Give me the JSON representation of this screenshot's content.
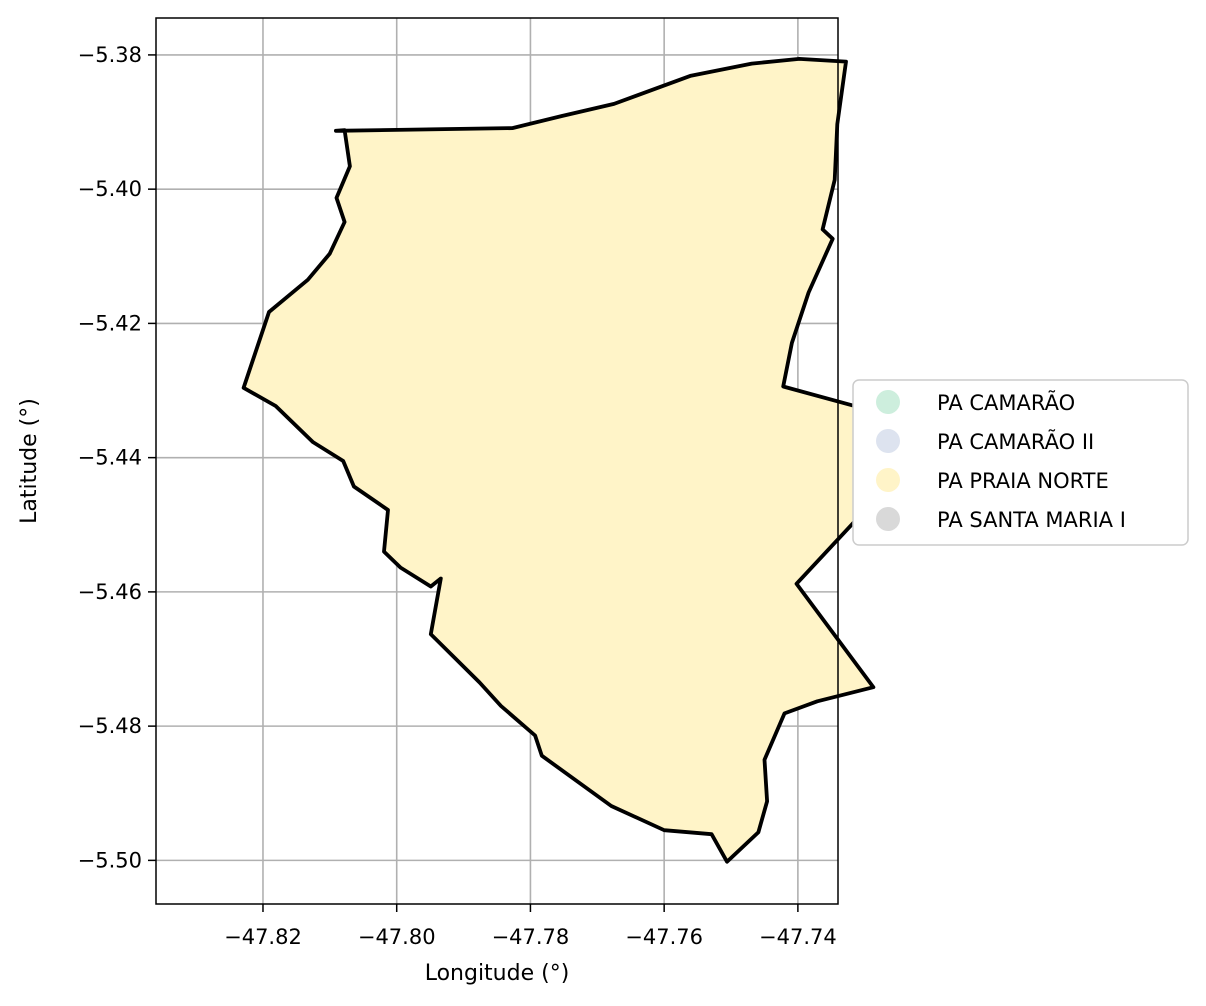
{
  "chart_data": {
    "type": "map",
    "xlabel": "Longitude (°)",
    "ylabel": "Latitude (°)",
    "xlim": [
      -47.836,
      -47.734
    ],
    "ylim": [
      -5.5065,
      -5.3745
    ],
    "x_ticks": [
      -47.82,
      -47.8,
      -47.78,
      -47.76,
      -47.74
    ],
    "y_ticks": [
      -5.38,
      -5.4,
      -5.42,
      -5.44,
      -5.46,
      -5.48,
      -5.5
    ],
    "x_tick_labels": [
      "−47.82",
      "−47.80",
      "−47.78",
      "−47.76",
      "−47.74"
    ],
    "y_tick_labels": [
      "−5.38",
      "−5.40",
      "−5.42",
      "−5.44",
      "−5.46",
      "−5.48",
      "−5.50"
    ],
    "grid": true,
    "legend_position": "center-right-outside",
    "legend": [
      {
        "name": "PA CAMARÃO",
        "color": "#cdeedd"
      },
      {
        "name": "PA CAMARÃO II",
        "color": "#dde3ef"
      },
      {
        "name": "PA PRAIA NORTE",
        "color": "#fff4c8"
      },
      {
        "name": "PA SANTA MARIA I",
        "color": "#d9d9d9"
      }
    ],
    "fill_color": "#fff4c8",
    "outline_color": "#000000",
    "outline": [
      [
        -47.7827,
        -5.3909
      ],
      [
        -47.7753,
        -5.3891
      ],
      [
        -47.7675,
        -5.3873
      ],
      [
        -47.756,
        -5.3831
      ],
      [
        -47.7469,
        -5.3813
      ],
      [
        -47.7398,
        -5.3806
      ],
      [
        -47.7328,
        -5.381
      ],
      [
        -47.7341,
        -5.3903
      ],
      [
        -47.7345,
        -5.3986
      ],
      [
        -47.7363,
        -5.406
      ],
      [
        -47.7348,
        -5.4074
      ],
      [
        -47.7384,
        -5.4154
      ],
      [
        -47.7409,
        -5.4229
      ],
      [
        -47.7422,
        -5.4294
      ],
      [
        -47.7312,
        -5.4324
      ],
      [
        -47.7149,
        -5.4347
      ],
      [
        -47.7119,
        -5.4318
      ],
      [
        -47.7089,
        -5.4393
      ],
      [
        -47.6982,
        -5.442
      ],
      [
        -47.6968,
        -5.4505
      ],
      [
        -47.7135,
        -5.4457
      ],
      [
        -47.7183,
        -5.4436
      ],
      [
        -47.7223,
        -5.4392
      ],
      [
        -47.7317,
        -5.4497
      ],
      [
        -47.7402,
        -5.4588
      ],
      [
        -47.7287,
        -5.4742
      ],
      [
        -47.7371,
        -5.4763
      ],
      [
        -47.742,
        -5.4781
      ],
      [
        -47.745,
        -5.485
      ],
      [
        -47.7446,
        -5.4912
      ],
      [
        -47.7459,
        -5.4958
      ],
      [
        -47.7506,
        -5.5002
      ],
      [
        -47.7529,
        -5.4961
      ],
      [
        -47.76,
        -5.4955
      ],
      [
        -47.7679,
        -5.4919
      ],
      [
        -47.7783,
        -5.4844
      ],
      [
        -47.7793,
        -5.4814
      ],
      [
        -47.7844,
        -5.477
      ],
      [
        -47.7876,
        -5.4735
      ],
      [
        -47.7949,
        -5.4663
      ],
      [
        -47.7934,
        -5.458
      ],
      [
        -47.7949,
        -5.4592
      ],
      [
        -47.7994,
        -5.4564
      ],
      [
        -47.8019,
        -5.454
      ],
      [
        -47.8013,
        -5.4478
      ],
      [
        -47.8064,
        -5.4443
      ],
      [
        -47.808,
        -5.4405
      ],
      [
        -47.8125,
        -5.4377
      ],
      [
        -47.8181,
        -5.4323
      ],
      [
        -47.8229,
        -5.4296
      ],
      [
        -47.8191,
        -5.4183
      ],
      [
        -47.8133,
        -5.4135
      ],
      [
        -47.81,
        -5.4096
      ],
      [
        -47.8078,
        -5.4049
      ],
      [
        -47.809,
        -5.4013
      ],
      [
        -47.807,
        -5.3966
      ],
      [
        -47.8078,
        -5.3912
      ],
      [
        -47.8091,
        -5.3913
      ],
      [
        -47.7827,
        -5.3909
      ]
    ]
  }
}
